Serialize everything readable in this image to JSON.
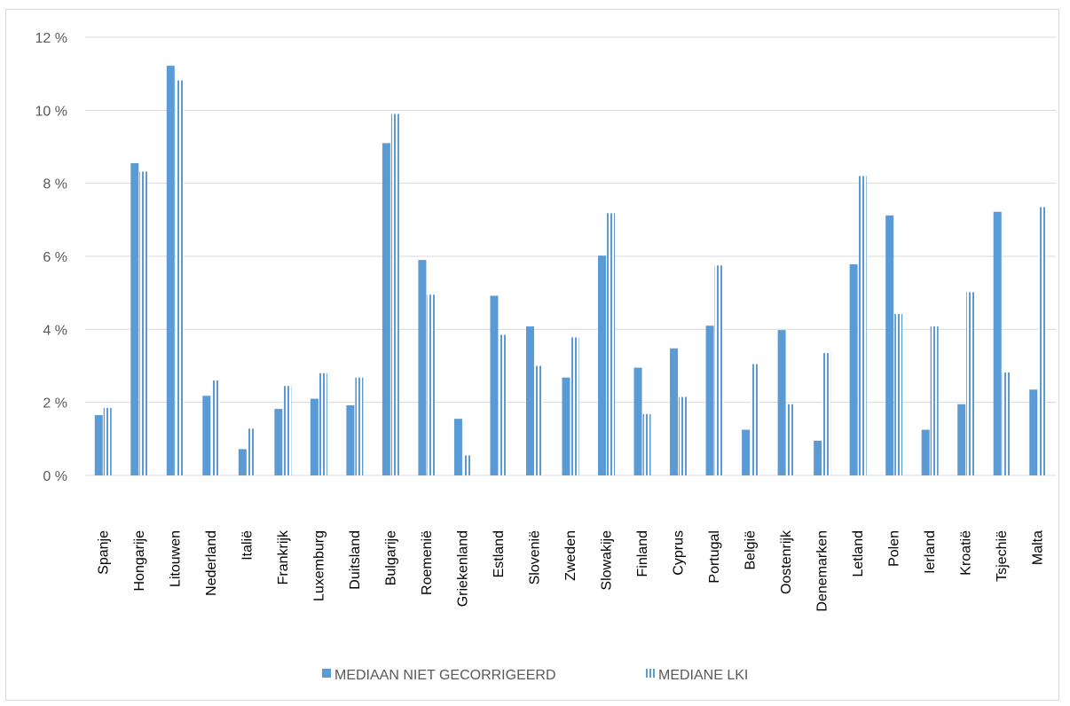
{
  "chart_data": {
    "type": "bar",
    "categories": [
      "Spanje",
      "Hongarije",
      "Litouwen",
      "Nederland",
      "Italië",
      "Frankrijk",
      "Luxemburg",
      "Duitsland",
      "Bulgarije",
      "Roemenië",
      "Griekenland",
      "Estland",
      "Slovenië",
      "Zweden",
      "Slowakije",
      "Finland",
      "Cyprus",
      "Portugal",
      "België",
      "Oostenrijk",
      "Denemarken",
      "Letland",
      "Polen",
      "Ierland",
      "Kroatië",
      "Tsjechië",
      "Malta"
    ],
    "series": [
      {
        "name": "MEDIAAN NIET GECORRIGEERD",
        "pattern": "solid",
        "color": "#5b9bd5",
        "values": [
          1.65,
          8.55,
          11.22,
          2.18,
          0.72,
          1.82,
          2.1,
          1.92,
          9.1,
          5.9,
          1.55,
          4.92,
          4.08,
          2.68,
          6.02,
          2.95,
          3.48,
          4.1,
          1.25,
          3.98,
          0.95,
          5.78,
          7.12,
          1.25,
          1.95,
          7.22,
          2.35
        ]
      },
      {
        "name": "MEDIANE LKI",
        "pattern": "vertical-stripes",
        "color": "#5b9bd5",
        "values": [
          1.85,
          8.32,
          10.82,
          2.6,
          1.28,
          2.45,
          2.8,
          2.68,
          9.9,
          4.95,
          0.55,
          3.85,
          3.0,
          3.78,
          7.18,
          1.68,
          2.15,
          5.75,
          3.05,
          1.95,
          3.35,
          8.2,
          4.42,
          4.08,
          5.02,
          2.82,
          7.35
        ]
      }
    ],
    "yticks": [
      "0 %",
      "2 %",
      "4 %",
      "6 %",
      "8 %",
      "10 %",
      "12 %"
    ],
    "ylim": [
      0,
      12
    ],
    "title": "",
    "xlabel": "",
    "ylabel": "",
    "grid": true,
    "legend_position": "bottom"
  }
}
